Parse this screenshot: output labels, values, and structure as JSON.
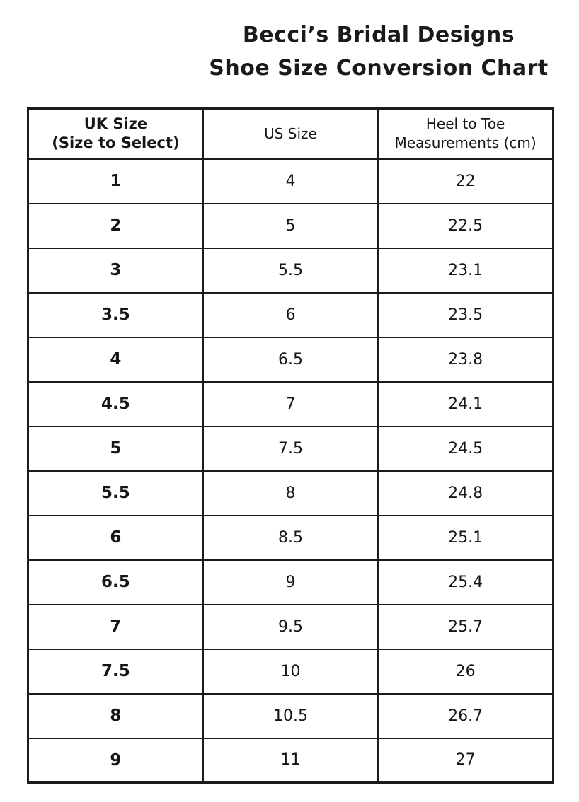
{
  "title": {
    "line1": "Becci’s Bridal Designs",
    "line2": "Shoe Size Conversion Chart"
  },
  "table": {
    "headers": [
      {
        "line1": "UK Size",
        "line2": "(Size to Select)"
      },
      {
        "line1": "US Size",
        "line2": ""
      },
      {
        "line1": "Heel to Toe",
        "line2": "Measurements (cm)"
      }
    ],
    "rows": [
      {
        "uk": "1",
        "us": "4",
        "cm": "22"
      },
      {
        "uk": "2",
        "us": "5",
        "cm": "22.5"
      },
      {
        "uk": "3",
        "us": "5.5",
        "cm": "23.1"
      },
      {
        "uk": "3.5",
        "us": "6",
        "cm": "23.5"
      },
      {
        "uk": "4",
        "us": "6.5",
        "cm": "23.8"
      },
      {
        "uk": "4.5",
        "us": "7",
        "cm": "24.1"
      },
      {
        "uk": "5",
        "us": "7.5",
        "cm": "24.5"
      },
      {
        "uk": "5.5",
        "us": "8",
        "cm": "24.8"
      },
      {
        "uk": "6",
        "us": "8.5",
        "cm": "25.1"
      },
      {
        "uk": "6.5",
        "us": "9",
        "cm": "25.4"
      },
      {
        "uk": "7",
        "us": "9.5",
        "cm": "25.7"
      },
      {
        "uk": "7.5",
        "us": "10",
        "cm": "26"
      },
      {
        "uk": "8",
        "us": "10.5",
        "cm": "26.7"
      },
      {
        "uk": "9",
        "us": "11",
        "cm": "27"
      }
    ]
  }
}
